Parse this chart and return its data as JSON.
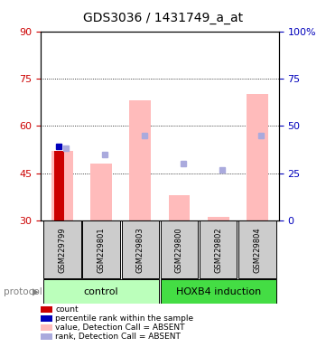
{
  "title": "GDS3036 / 1431749_a_at",
  "ylim_left": [
    30,
    90
  ],
  "ylim_right": [
    0,
    100
  ],
  "yticks_left": [
    30,
    45,
    60,
    75,
    90
  ],
  "yticks_right": [
    0,
    25,
    50,
    75,
    100
  ],
  "ytick_right_labels": [
    "0",
    "25",
    "50",
    "75",
    "100%"
  ],
  "samples": [
    "GSM229799",
    "GSM229801",
    "GSM229803",
    "GSM229800",
    "GSM229802",
    "GSM229804"
  ],
  "group_labels": [
    "control",
    "HOXB4 induction"
  ],
  "pink_bar_bottom": [
    30,
    30,
    30,
    30,
    30,
    30
  ],
  "pink_bar_top": [
    52,
    48,
    68,
    38,
    31,
    70
  ],
  "rank_square_y": [
    53,
    51,
    57,
    48,
    46,
    57
  ],
  "count_bar_top": [
    52,
    null,
    null,
    null,
    null,
    null
  ],
  "count_bar_bottom": [
    30,
    null,
    null,
    null,
    null,
    null
  ],
  "percentile_rank_y": [
    53.5,
    null,
    null,
    null,
    null,
    null
  ],
  "bar_width": 0.55,
  "pink_color": "#ffbbbb",
  "rank_color": "#aaaadd",
  "count_color": "#cc0000",
  "percentile_color": "#0000bb",
  "left_axis_color": "#cc0000",
  "right_axis_color": "#0000bb",
  "grid_color": "#000000",
  "protocol_label": "protocol",
  "legend_items": [
    {
      "label": "count",
      "color": "#cc0000"
    },
    {
      "label": "percentile rank within the sample",
      "color": "#0000bb"
    },
    {
      "label": "value, Detection Call = ABSENT",
      "color": "#ffbbbb"
    },
    {
      "label": "rank, Detection Call = ABSENT",
      "color": "#aaaadd"
    }
  ],
  "bg_color": "#ffffff",
  "plot_bg_color": "#ffffff",
  "sample_bg_color": "#cccccc",
  "ctrl_green": "#bbffbb",
  "hoxb4_green": "#44dd44"
}
